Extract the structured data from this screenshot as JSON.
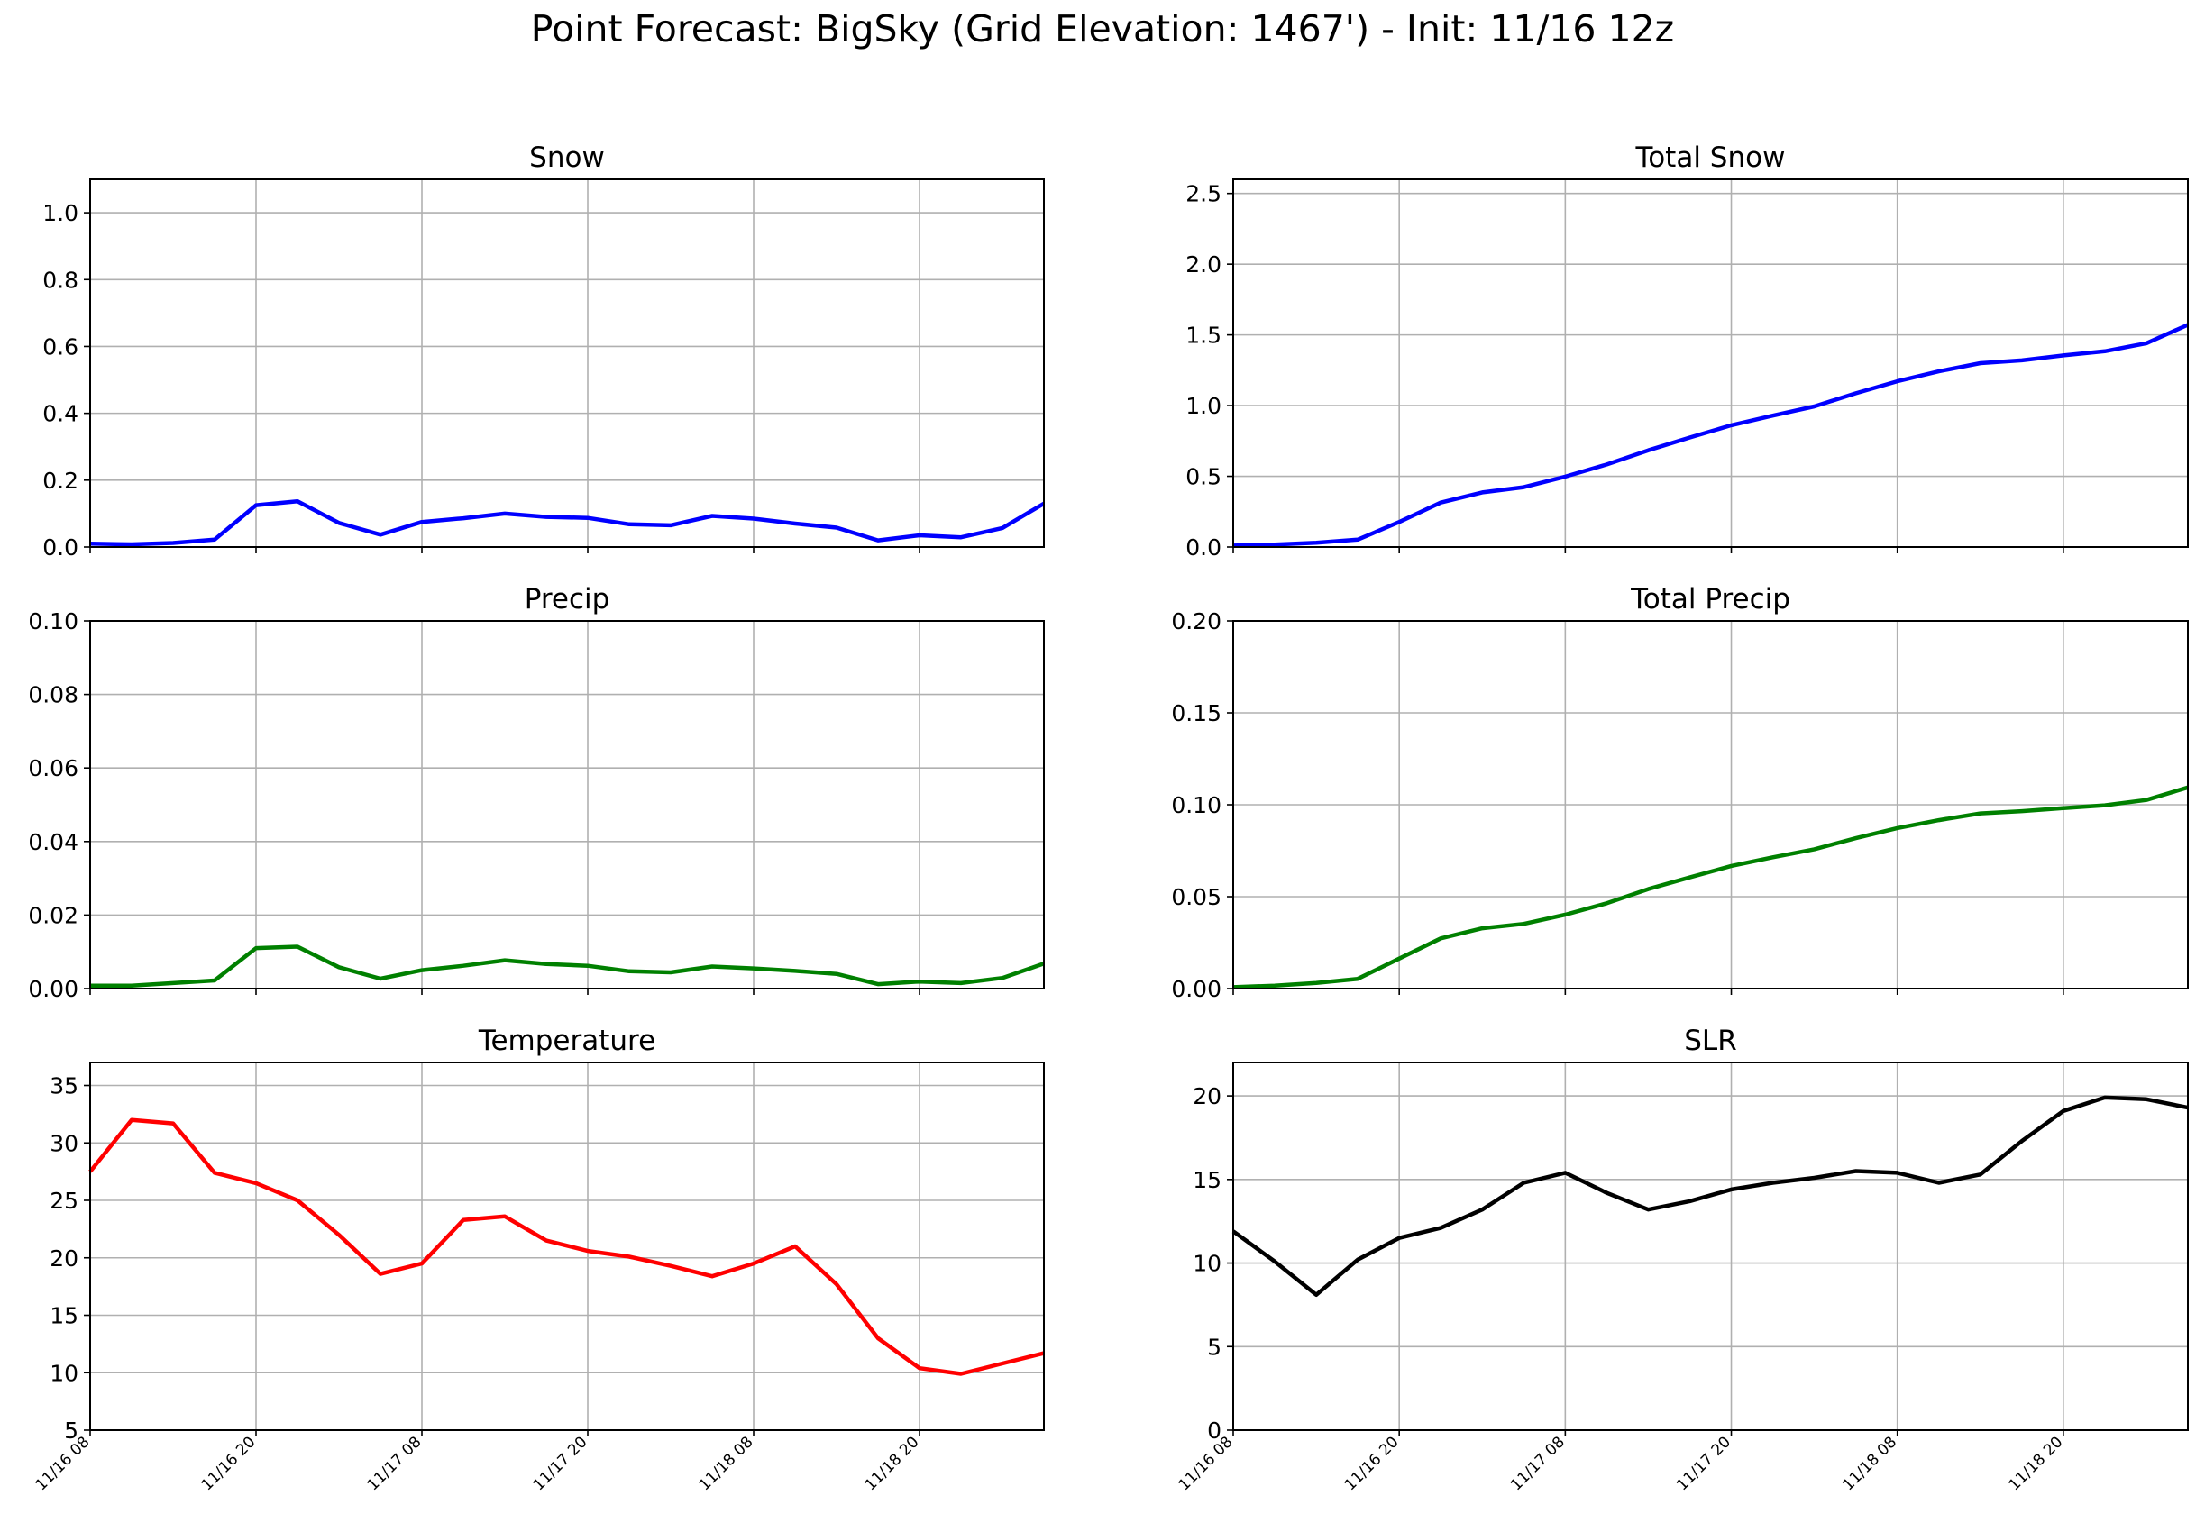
{
  "suptitle": "Point Forecast: BigSky (Grid Elevation: 1467') - Init: 11/16 12z",
  "x_ticks": [
    "11/16 08",
    "11/16 20",
    "11/17 08",
    "11/17 20",
    "11/18 08",
    "11/18 20"
  ],
  "chart_data": [
    {
      "type": "line",
      "title": "Snow",
      "color": "#0000ff",
      "ylim": [
        0,
        1.1
      ],
      "yticks": [
        "0.0",
        "0.2",
        "0.4",
        "0.6",
        "0.8",
        "1.0"
      ],
      "ytick_values": [
        0,
        0.2,
        0.4,
        0.6,
        0.8,
        1.0
      ],
      "grid": true,
      "series": [
        {
          "values": [
            0.01,
            0.008,
            0.012,
            0.022,
            0.125,
            0.137,
            0.072,
            0.037,
            0.075,
            0.086,
            0.1,
            0.09,
            0.087,
            0.068,
            0.065,
            0.093,
            0.085,
            0.07,
            0.058,
            0.02,
            0.035,
            0.029,
            0.057,
            0.13
          ]
        }
      ]
    },
    {
      "type": "line",
      "title": "Total Snow",
      "color": "#0000ff",
      "ylim": [
        0,
        2.6
      ],
      "yticks": [
        "0.0",
        "0.5",
        "1.0",
        "1.5",
        "2.0",
        "2.5"
      ],
      "ytick_values": [
        0,
        0.5,
        1.0,
        1.5,
        2.0,
        2.5
      ],
      "grid": true,
      "series": [
        {
          "values": [
            0.01,
            0.018,
            0.03,
            0.052,
            0.177,
            0.314,
            0.386,
            0.423,
            0.498,
            0.584,
            0.684,
            0.774,
            0.861,
            0.929,
            0.994,
            1.087,
            1.172,
            1.242,
            1.3,
            1.32,
            1.355,
            1.384,
            1.441,
            1.571
          ]
        }
      ]
    },
    {
      "type": "line",
      "title": "Precip",
      "color": "#008000",
      "ylim": [
        0,
        0.1
      ],
      "yticks": [
        "0.00",
        "0.02",
        "0.04",
        "0.06",
        "0.08",
        "0.10"
      ],
      "ytick_values": [
        0,
        0.02,
        0.04,
        0.06,
        0.08,
        0.1
      ],
      "grid": true,
      "series": [
        {
          "values": [
            0.0008,
            0.0008,
            0.0015,
            0.0022,
            0.011,
            0.0114,
            0.0058,
            0.0027,
            0.005,
            0.0062,
            0.0077,
            0.0067,
            0.0062,
            0.0047,
            0.0044,
            0.006,
            0.0055,
            0.0048,
            0.004,
            0.0012,
            0.0019,
            0.0015,
            0.0029,
            0.0068
          ]
        }
      ]
    },
    {
      "type": "line",
      "title": "Total Precip",
      "color": "#008000",
      "ylim": [
        0,
        0.2
      ],
      "yticks": [
        "0.00",
        "0.05",
        "0.10",
        "0.15",
        "0.20"
      ],
      "ytick_values": [
        0,
        0.05,
        0.1,
        0.15,
        0.2
      ],
      "grid": true,
      "series": [
        {
          "values": [
            0.0008,
            0.0016,
            0.0031,
            0.0053,
            0.0163,
            0.0273,
            0.0328,
            0.0352,
            0.0402,
            0.0464,
            0.0541,
            0.0605,
            0.0667,
            0.0714,
            0.0758,
            0.0818,
            0.0873,
            0.0916,
            0.0953,
            0.0965,
            0.0982,
            0.0997,
            0.1026,
            0.1094
          ]
        }
      ]
    },
    {
      "type": "line",
      "title": "Temperature",
      "color": "#ff0000",
      "ylim": [
        5,
        37
      ],
      "yticks": [
        "5",
        "10",
        "15",
        "20",
        "25",
        "30",
        "35"
      ],
      "ytick_values": [
        5,
        10,
        15,
        20,
        25,
        30,
        35
      ],
      "grid": true,
      "series": [
        {
          "values": [
            27.5,
            32.0,
            31.7,
            27.4,
            26.5,
            25.0,
            22.0,
            18.6,
            19.5,
            23.3,
            23.6,
            21.5,
            20.6,
            20.1,
            19.3,
            18.4,
            19.5,
            21.0,
            17.7,
            13.0,
            10.4,
            9.9,
            10.8,
            11.7
          ]
        }
      ]
    },
    {
      "type": "line",
      "title": "SLR",
      "color": "#000000",
      "ylim": [
        0,
        22
      ],
      "yticks": [
        "0",
        "5",
        "10",
        "15",
        "20"
      ],
      "ytick_values": [
        0,
        5,
        10,
        15,
        20
      ],
      "grid": true,
      "series": [
        {
          "values": [
            11.9,
            10.1,
            8.1,
            10.2,
            11.5,
            12.1,
            13.2,
            14.8,
            15.4,
            14.2,
            13.2,
            13.7,
            14.4,
            14.8,
            15.1,
            15.5,
            15.4,
            14.8,
            15.3,
            17.3,
            19.1,
            19.9,
            19.8,
            19.3
          ]
        }
      ]
    }
  ]
}
